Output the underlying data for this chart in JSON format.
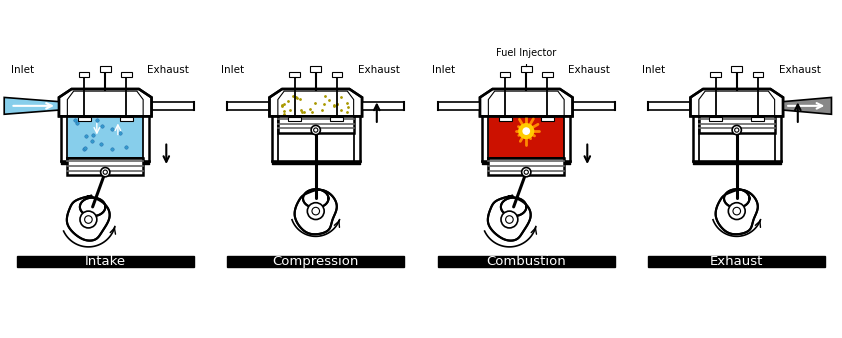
{
  "stages": [
    "Intake",
    "Compression",
    "Combustion",
    "Exhaust"
  ],
  "stage_colors": [
    "#87CEEB",
    "#FFEE00",
    "#CC1100",
    "#707070"
  ],
  "inlet_label": "Inlet",
  "exhaust_label": "Exhaust",
  "fuel_injector_label": "Fuel Injector",
  "black": "#000000",
  "white": "#FFFFFF",
  "gray": "#999999",
  "intake_pipe_color": "#87CEEB",
  "exhaust_pipe_color": "#888888",
  "label_fontsize": 8.5,
  "stage_label_fontsize": 10
}
